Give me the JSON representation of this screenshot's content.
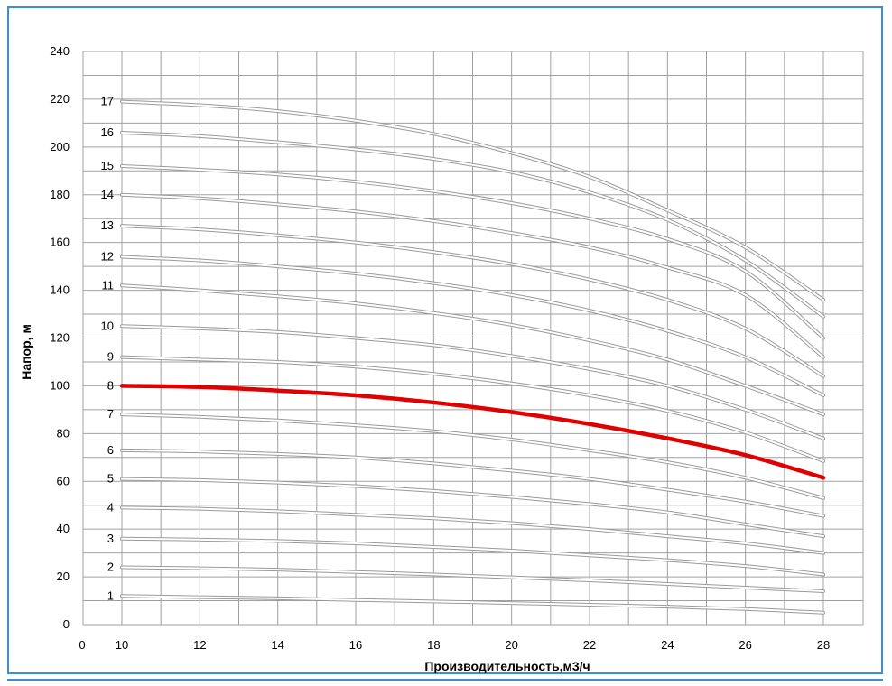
{
  "chart_data": {
    "type": "line",
    "title": "",
    "xlabel": "Производительность,м3/ч",
    "ylabel": "Напор, м",
    "xlim": [
      0,
      28
    ],
    "ylim": [
      0,
      240
    ],
    "x_ticks": [
      "0",
      "10",
      "12",
      "14",
      "16",
      "18",
      "20",
      "22",
      "24",
      "26",
      "28"
    ],
    "y_ticks": [
      "0",
      "20",
      "40",
      "60",
      "80",
      "100",
      "120",
      "140",
      "160",
      "180",
      "200",
      "220",
      "240"
    ],
    "grid": true,
    "x": [
      10,
      12,
      14,
      16,
      18,
      20,
      22,
      24,
      26,
      28
    ],
    "highlight_series": "8",
    "colors": {
      "default_line": "#c8c8c8",
      "highlight_line": "#e00000",
      "grid": "#a0a0a0",
      "frame": "#3a8fd6"
    },
    "series": [
      {
        "name": "1",
        "values": [
          12,
          11.5,
          11,
          10.3,
          9.7,
          9,
          8.3,
          7.5,
          6.5,
          5
        ]
      },
      {
        "name": "2",
        "values": [
          24,
          23.6,
          23,
          22,
          21,
          19.8,
          18.5,
          17,
          15.5,
          14
        ]
      },
      {
        "name": "3",
        "values": [
          36,
          35.6,
          35,
          34,
          32.5,
          31,
          29,
          27,
          24.5,
          21
        ]
      },
      {
        "name": "4",
        "values": [
          49,
          48.5,
          47.5,
          46,
          44.5,
          42.5,
          40,
          37,
          34,
          30
        ]
      },
      {
        "name": "5",
        "values": [
          61,
          60.5,
          59.5,
          58,
          56,
          53.5,
          50.5,
          47,
          42,
          37
        ]
      },
      {
        "name": "6",
        "values": [
          73,
          72.5,
          71.5,
          70,
          67.5,
          64.5,
          61,
          56.5,
          51.5,
          45.5
        ]
      },
      {
        "name": "7",
        "values": [
          88,
          87,
          85.5,
          83.5,
          81,
          77.5,
          73,
          68,
          61.5,
          53
        ]
      },
      {
        "name": "8",
        "values": [
          100,
          99.5,
          98,
          96,
          93,
          89,
          84,
          78,
          71,
          61.5
        ]
      },
      {
        "name": "9",
        "values": [
          112,
          111,
          110,
          108,
          105,
          101,
          96,
          89.5,
          80.5,
          68.5
        ]
      },
      {
        "name": "10",
        "values": [
          125,
          124,
          122.5,
          120,
          117,
          112.5,
          107,
          100,
          90,
          78
        ]
      },
      {
        "name": "11",
        "values": [
          142,
          140,
          137.5,
          134.5,
          130.5,
          125.5,
          119,
          111,
          100,
          88
        ]
      },
      {
        "name": "12",
        "values": [
          154,
          152.5,
          150,
          147,
          143,
          138,
          131.5,
          123,
          112,
          96
        ]
      },
      {
        "name": "13",
        "values": [
          167,
          165.5,
          163,
          160,
          156,
          151,
          144.5,
          136,
          124,
          104
        ]
      },
      {
        "name": "14",
        "values": [
          180,
          178.5,
          176,
          173,
          169,
          164,
          158,
          149.5,
          138,
          112
        ]
      },
      {
        "name": "15",
        "values": [
          192,
          190.5,
          188.5,
          185.5,
          181.5,
          176.5,
          170,
          161.5,
          148,
          120
        ]
      },
      {
        "name": "16",
        "values": [
          206,
          204.5,
          202,
          199,
          195,
          189.5,
          181,
          169.5,
          152.5,
          129
        ]
      },
      {
        "name": "17",
        "values": [
          219,
          217.5,
          215,
          211,
          205.5,
          197.5,
          187.5,
          173.5,
          158,
          136
        ]
      }
    ]
  }
}
